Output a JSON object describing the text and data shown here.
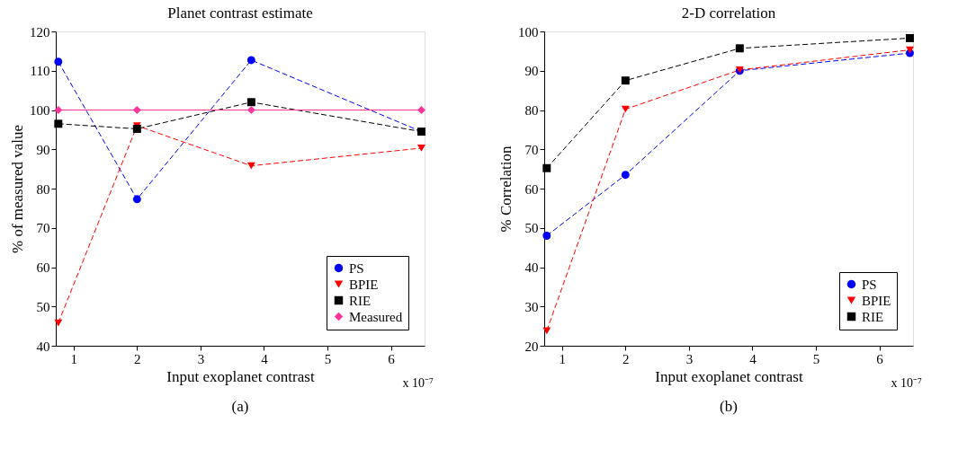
{
  "chart_data": [
    {
      "type": "line",
      "title": "Planet contrast estimate",
      "xlabel": "Input exoplanet contrast",
      "ylabel": "% of measured value",
      "x": [
        0.76,
        2.0,
        3.8,
        6.48
      ],
      "xlim": [
        0.72,
        6.53
      ],
      "xticks": [
        1,
        2,
        3,
        4,
        5,
        6
      ],
      "ylim": [
        40,
        120
      ],
      "yticks": [
        40,
        50,
        60,
        70,
        80,
        90,
        100,
        110,
        120
      ],
      "grid": false,
      "legend": "bottom right",
      "annotations": [
        "x 10⁻⁷",
        "(a)"
      ],
      "series": [
        {
          "name": "PS",
          "color": "#0000ff",
          "marker": "circle",
          "line_style": "dashed",
          "values": [
            112.3,
            77.3,
            112.7,
            94.5
          ]
        },
        {
          "name": "BPIE",
          "color": "#ff0000",
          "marker": "triangle",
          "line_style": "dashed",
          "values": [
            45.8,
            96.0,
            85.8,
            90.3
          ]
        },
        {
          "name": "RIE",
          "color": "#000000",
          "marker": "square",
          "line_style": "dashed",
          "values": [
            96.5,
            95.2,
            102.0,
            94.5
          ]
        },
        {
          "name": "Measured",
          "color": "#ff3399",
          "marker": "diamond",
          "line_style": "solid",
          "values": [
            100,
            100,
            100,
            100
          ]
        }
      ]
    },
    {
      "type": "line",
      "title": "2-D correlation",
      "xlabel": "Input exoplanet contrast",
      "ylabel": "% Correlation",
      "x": [
        0.76,
        2.0,
        3.8,
        6.48
      ],
      "xlim": [
        0.72,
        6.53
      ],
      "xticks": [
        1,
        2,
        3,
        4,
        5,
        6
      ],
      "ylim": [
        20,
        100
      ],
      "yticks": [
        20,
        30,
        40,
        50,
        60,
        70,
        80,
        90,
        100
      ],
      "grid": false,
      "legend": "bottom right",
      "annotations": [
        "x 10⁻⁷",
        "(b)"
      ],
      "series": [
        {
          "name": "PS",
          "color": "#0000ff",
          "marker": "circle",
          "line_style": "dashed",
          "values": [
            48.0,
            63.5,
            90.0,
            94.5
          ]
        },
        {
          "name": "BPIE",
          "color": "#ff0000",
          "marker": "triangle",
          "line_style": "dashed",
          "values": [
            23.8,
            80.2,
            90.2,
            95.3
          ]
        },
        {
          "name": "RIE",
          "color": "#000000",
          "marker": "square",
          "line_style": "dashed",
          "values": [
            65.2,
            87.5,
            95.7,
            98.3
          ]
        }
      ]
    }
  ]
}
